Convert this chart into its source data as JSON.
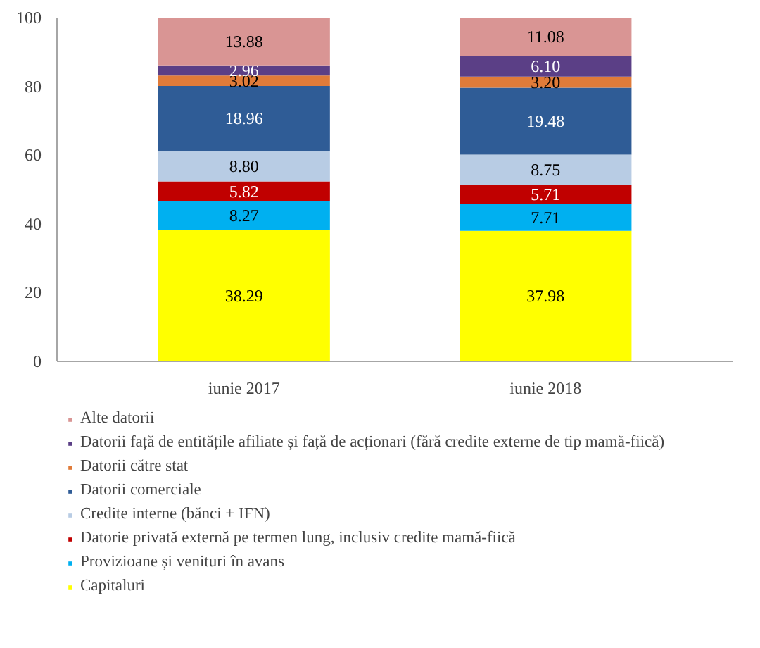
{
  "chart_data": {
    "type": "bar",
    "stacked": true,
    "categories": [
      "iunie 2017",
      "iunie 2018"
    ],
    "series": [
      {
        "name": "Capitaluri",
        "color": "#ffff00",
        "values": [
          38.29,
          37.98
        ],
        "value_labels": [
          "38.29",
          "37.98"
        ]
      },
      {
        "name": "Provizioane și venituri în avans",
        "color": "#00b0f0",
        "values": [
          8.27,
          7.71
        ],
        "value_labels": [
          "8.27",
          "7.71"
        ]
      },
      {
        "name": "Datorie privată externă pe termen lung, inclusiv credite mamă-fiică",
        "color": "#c00000",
        "values": [
          5.82,
          5.71
        ],
        "value_labels": [
          "5.82",
          "5.71"
        ]
      },
      {
        "name": "Credite interne (bănci + IFN)",
        "color": "#b8cce4",
        "values": [
          8.8,
          8.75
        ],
        "value_labels": [
          "8.80",
          "8.75"
        ]
      },
      {
        "name": "Datorii comerciale",
        "color": "#2f5c96",
        "values": [
          18.96,
          19.48
        ],
        "value_labels": [
          "18.96",
          "19.48"
        ]
      },
      {
        "name": "Datorii către stat",
        "color": "#e07b39",
        "values": [
          3.02,
          3.2
        ],
        "value_labels": [
          "3.02",
          "3.20"
        ]
      },
      {
        "name": "Datorii față de entitățile afiliate și față de acționari (fără credite externe de tip mamă-fiică)",
        "color": "#5b3f86",
        "values": [
          2.96,
          6.1
        ],
        "value_labels": [
          "2.96",
          "6.10"
        ]
      },
      {
        "name": "Alte datorii",
        "color": "#d99594",
        "values": [
          13.88,
          11.08
        ],
        "value_labels": [
          "13.88",
          "11.08"
        ]
      }
    ],
    "ylim": [
      0,
      100
    ],
    "yticks": [
      0,
      20,
      40,
      60,
      80,
      100
    ],
    "grid": false,
    "legend": "bottom",
    "data_labels": true
  }
}
